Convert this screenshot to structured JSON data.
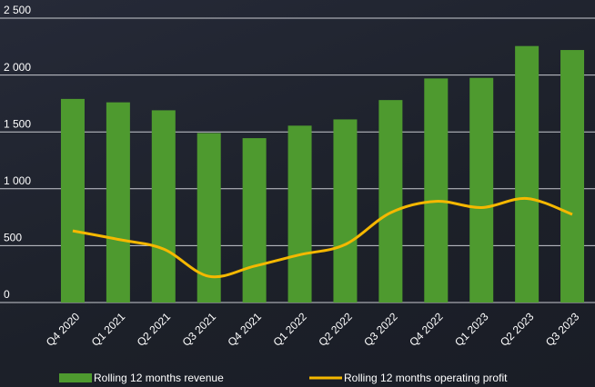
{
  "chart_data": {
    "type": "bar_line",
    "categories": [
      "Q4 2020",
      "Q1 2021",
      "Q2 2021",
      "Q3 2021",
      "Q4 2021",
      "Q1 2022",
      "Q2 2022",
      "Q3 2022",
      "Q4 2022",
      "Q1 2023",
      "Q2 2023",
      "Q3 2023"
    ],
    "series": [
      {
        "name": "Rolling 12 months revenue",
        "type": "bar",
        "color": "#4e9a2f",
        "values": [
          1790,
          1760,
          1690,
          1490,
          1445,
          1555,
          1610,
          1780,
          1970,
          1975,
          2255,
          2220
        ]
      },
      {
        "name": "Rolling 12 months operating profit",
        "type": "line",
        "color": "#f5b800",
        "values": [
          630,
          555,
          470,
          230,
          320,
          420,
          510,
          790,
          890,
          835,
          915,
          775
        ]
      }
    ],
    "ylim": [
      0,
      2500
    ],
    "yticks": [
      0,
      500,
      {
        "value": 1000,
        "label": "1 000"
      },
      {
        "value": 1500,
        "label": "1 500"
      },
      {
        "value": 2000,
        "label": "2 000"
      },
      {
        "value": 2500,
        "label": "2 500"
      }
    ],
    "grid": true
  }
}
